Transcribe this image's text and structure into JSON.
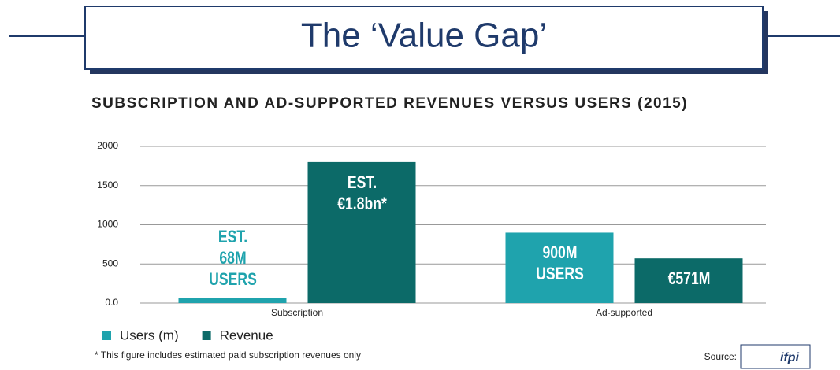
{
  "slide": {
    "title": "The ‘Value Gap’"
  },
  "chart_data": {
    "type": "bar",
    "title": "SUBSCRIPTION AND AD-SUPPORTED REVENUES VERSUS USERS (2015)",
    "categories": [
      "Subscription",
      "Ad-supported"
    ],
    "series": [
      {
        "name": "Users (m)",
        "color": "#1fa3ad",
        "values": [
          68,
          900
        ],
        "value_labels": [
          "EST. 68M USERS",
          "900M USERS"
        ]
      },
      {
        "name": "Revenue",
        "color": "#0c6a68",
        "values": [
          1800,
          571
        ],
        "value_labels": [
          "EST. €1.8bn*",
          "€571M"
        ]
      }
    ],
    "ylim": [
      0,
      2000
    ],
    "yticks": [
      {
        "value": 0,
        "label": "0.0"
      },
      500,
      1000,
      1500,
      2000
    ],
    "grid": true,
    "legend": "bottom-left",
    "note": "* This figure includes estimated paid subscription revenues only",
    "source": "Source:",
    "source_logo": "ifpi"
  }
}
